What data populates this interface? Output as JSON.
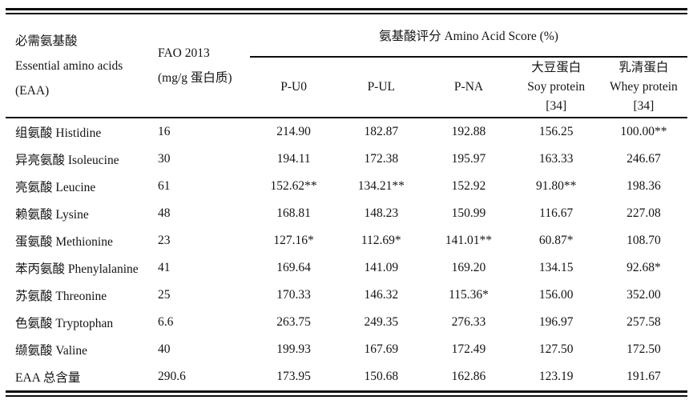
{
  "table": {
    "eaa_header": {
      "line1": "必需氨基酸",
      "line2": "Essential amino acids",
      "line3": "(EAA)"
    },
    "fao_header": {
      "line1": "FAO 2013",
      "line2": "(mg/g 蛋白质)"
    },
    "score_group_title": "氨基酸评分  Amino Acid Score (%)",
    "score_columns": [
      {
        "lines": [
          "",
          "P-U0",
          ""
        ]
      },
      {
        "lines": [
          "",
          "P-UL",
          ""
        ]
      },
      {
        "lines": [
          "",
          "P-NA",
          ""
        ]
      },
      {
        "lines": [
          "大豆蛋白",
          "Soy protein",
          "[34]"
        ]
      },
      {
        "lines": [
          "乳清蛋白",
          "Whey protein",
          "[34]"
        ]
      }
    ],
    "rows": [
      {
        "name": "组氨酸 Histidine",
        "fao": "16",
        "scores": [
          "214.90",
          "182.87",
          "192.88",
          "156.25",
          "100.00**"
        ]
      },
      {
        "name": "异亮氨酸 Isoleucine",
        "fao": "30",
        "scores": [
          "194.11",
          "172.38",
          "195.97",
          "163.33",
          "246.67"
        ]
      },
      {
        "name": "亮氨酸 Leucine",
        "fao": "61",
        "scores": [
          "152.62**",
          "134.21**",
          "152.92",
          "91.80**",
          "198.36"
        ]
      },
      {
        "name": "赖氨酸 Lysine",
        "fao": "48",
        "scores": [
          "168.81",
          "148.23",
          "150.99",
          "116.67",
          "227.08"
        ]
      },
      {
        "name": "蛋氨酸 Methionine",
        "fao": "23",
        "scores": [
          "127.16*",
          "112.69*",
          "141.01**",
          "60.87*",
          "108.70"
        ]
      },
      {
        "name": "苯丙氨酸 Phenylalanine",
        "fao": "41",
        "scores": [
          "169.64",
          "141.09",
          "169.20",
          "134.15",
          "92.68*"
        ]
      },
      {
        "name": "苏氨酸 Threonine",
        "fao": "25",
        "scores": [
          "170.33",
          "146.32",
          "115.36*",
          "156.00",
          "352.00"
        ]
      },
      {
        "name": "色氨酸 Tryptophan",
        "fao": "6.6",
        "scores": [
          "263.75",
          "249.35",
          "276.33",
          "196.97",
          "257.58"
        ]
      },
      {
        "name": "缬氨酸 Valine",
        "fao": "40",
        "scores": [
          "199.93",
          "167.69",
          "172.49",
          "127.50",
          "172.50"
        ]
      },
      {
        "name": "EAA 总含量",
        "fao": "290.6",
        "scores": [
          "173.95",
          "150.68",
          "162.86",
          "123.19",
          "191.67"
        ]
      }
    ]
  },
  "chart_data": {
    "type": "table",
    "title": "氨基酸评分 Amino Acid Score (%)",
    "categories": [
      "Histidine",
      "Isoleucine",
      "Leucine",
      "Lysine",
      "Methionine",
      "Phenylalanine",
      "Threonine",
      "Tryptophan",
      "Valine",
      "EAA total"
    ],
    "fao_2013_mg_per_g_protein": [
      16,
      30,
      61,
      48,
      23,
      41,
      25,
      6.6,
      40,
      290.6
    ],
    "series": [
      {
        "name": "P-U0",
        "values": [
          214.9,
          194.11,
          152.62,
          168.81,
          127.16,
          169.64,
          170.33,
          263.75,
          199.93,
          173.95
        ]
      },
      {
        "name": "P-UL",
        "values": [
          182.87,
          172.38,
          134.21,
          148.23,
          112.69,
          141.09,
          146.32,
          249.35,
          167.69,
          150.68
        ]
      },
      {
        "name": "P-NA",
        "values": [
          192.88,
          195.97,
          152.92,
          150.99,
          141.01,
          169.2,
          115.36,
          276.33,
          172.49,
          162.86
        ]
      },
      {
        "name": "Soy protein [34]",
        "values": [
          156.25,
          163.33,
          91.8,
          116.67,
          60.87,
          134.15,
          156.0,
          196.97,
          127.5,
          123.19
        ]
      },
      {
        "name": "Whey protein [34]",
        "values": [
          100.0,
          246.67,
          198.36,
          227.08,
          108.7,
          92.68,
          352.0,
          257.58,
          172.5,
          191.67
        ]
      }
    ]
  }
}
